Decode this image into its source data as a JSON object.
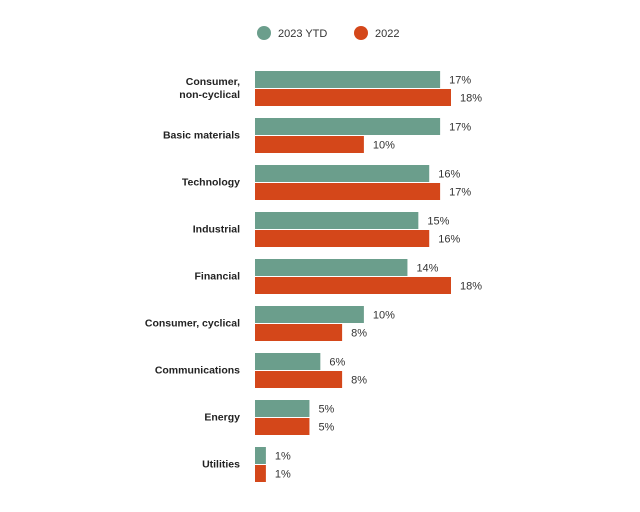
{
  "chart_data": {
    "type": "bar",
    "orientation": "horizontal",
    "categories": [
      "Consumer,\nnon-cyclical",
      "Basic materials",
      "Technology",
      "Industrial",
      "Financial",
      "Consumer, cyclical",
      "Communications",
      "Energy",
      "Utilities"
    ],
    "series": [
      {
        "name": "2023 YTD",
        "color": "#6b9e8c",
        "values": [
          17,
          17,
          16,
          15,
          14,
          10,
          6,
          5,
          1
        ],
        "value_labels": [
          "17%",
          "17%",
          "16%",
          "15%",
          "14%",
          "10%",
          "6%",
          "5%",
          "1%"
        ]
      },
      {
        "name": "2022",
        "color": "#d4471a",
        "values": [
          18,
          10,
          17,
          16,
          18,
          8,
          8,
          5,
          1
        ],
        "value_labels": [
          "18%",
          "10%",
          "17%",
          "16%",
          "18%",
          "8%",
          "8%",
          "5%",
          "1%"
        ]
      }
    ],
    "legend": "top"
  }
}
